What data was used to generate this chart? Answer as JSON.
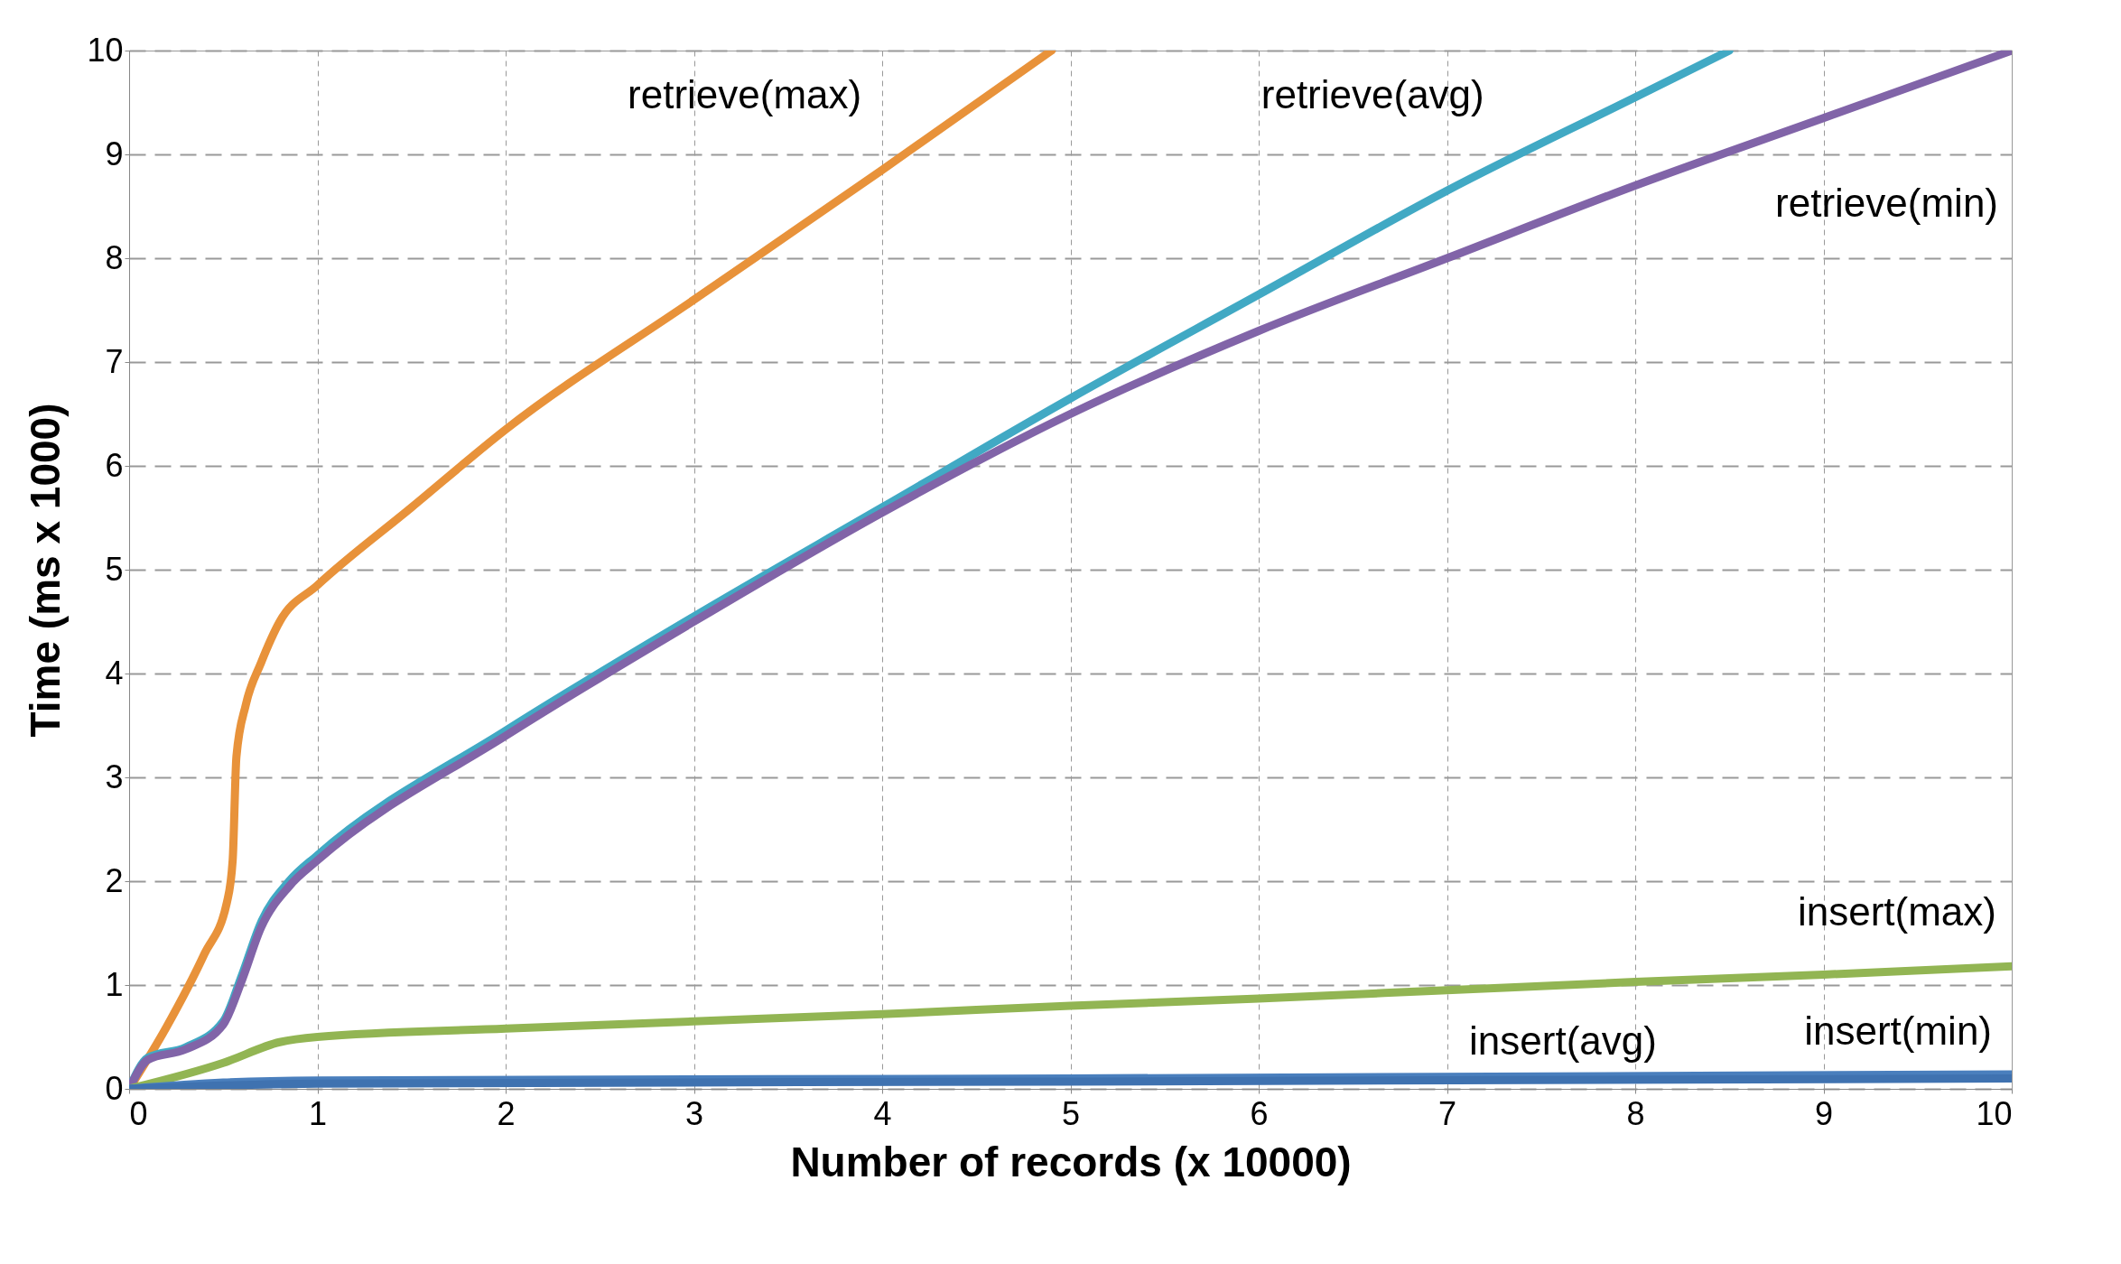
{
  "chart_data": {
    "type": "line",
    "xlabel": "Number of records (x 10000)",
    "ylabel": "Time (ms x 1000)",
    "xlim": [
      0,
      10
    ],
    "ylim": [
      0,
      10
    ],
    "xticks": [
      0,
      1,
      2,
      3,
      4,
      5,
      6,
      7,
      8,
      9,
      10
    ],
    "yticks": [
      0,
      1,
      2,
      3,
      4,
      5,
      6,
      7,
      8,
      9,
      10
    ],
    "grid": true,
    "legend": false,
    "marker": "none",
    "line_style": "solid",
    "series": [
      {
        "name": "retrieve(max)",
        "color": "#e8923a",
        "x": [
          0,
          0.2,
          0.4,
          0.52,
          0.55,
          0.57,
          0.62,
          0.7,
          0.8,
          1,
          1.5,
          2,
          3,
          4,
          4.9
        ],
        "values": [
          0,
          0.6,
          1.3,
          1.8,
          2.2,
          3.2,
          3.7,
          4.1,
          4.5,
          4.85,
          5.6,
          6.35,
          7.6,
          8.85,
          10
        ]
      },
      {
        "name": "retrieve(avg)",
        "color": "#41a9c4",
        "x": [
          0,
          0.1,
          0.3,
          0.5,
          0.6,
          0.7,
          0.85,
          1,
          2,
          3,
          4,
          5,
          6,
          7,
          8,
          8.5
        ],
        "values": [
          0,
          0.3,
          0.4,
          0.65,
          1.1,
          1.6,
          2.0,
          2.25,
          3.45,
          4.55,
          5.6,
          6.65,
          7.65,
          8.65,
          9.55,
          10
        ]
      },
      {
        "name": "retrieve(min)",
        "color": "#8164a8",
        "x": [
          0,
          0.1,
          0.3,
          0.5,
          0.6,
          0.7,
          0.85,
          1,
          2,
          3,
          4,
          5,
          6,
          7,
          8,
          9,
          10
        ],
        "values": [
          0,
          0.28,
          0.38,
          0.62,
          1.05,
          1.55,
          1.95,
          2.2,
          3.4,
          4.5,
          5.55,
          6.5,
          7.3,
          8.0,
          8.7,
          9.35,
          10
        ]
      },
      {
        "name": "insert(max)",
        "color": "#92b553",
        "x": [
          0,
          0.5,
          0.8,
          1,
          2,
          3,
          4,
          5,
          6,
          7,
          8,
          9,
          10
        ],
        "values": [
          0,
          0.25,
          0.45,
          0.5,
          0.58,
          0.65,
          0.72,
          0.8,
          0.87,
          0.95,
          1.03,
          1.1,
          1.18
        ]
      },
      {
        "name": "insert(min)",
        "color": "#4a7fbd",
        "x": [
          0,
          0.5,
          1,
          5,
          10
        ],
        "values": [
          0,
          0.06,
          0.08,
          0.1,
          0.14
        ]
      },
      {
        "name": "insert(avg)",
        "color": "#3f72b0",
        "x": [
          0,
          1,
          5,
          10
        ],
        "values": [
          0,
          0.05,
          0.07,
          0.1
        ]
      }
    ]
  }
}
